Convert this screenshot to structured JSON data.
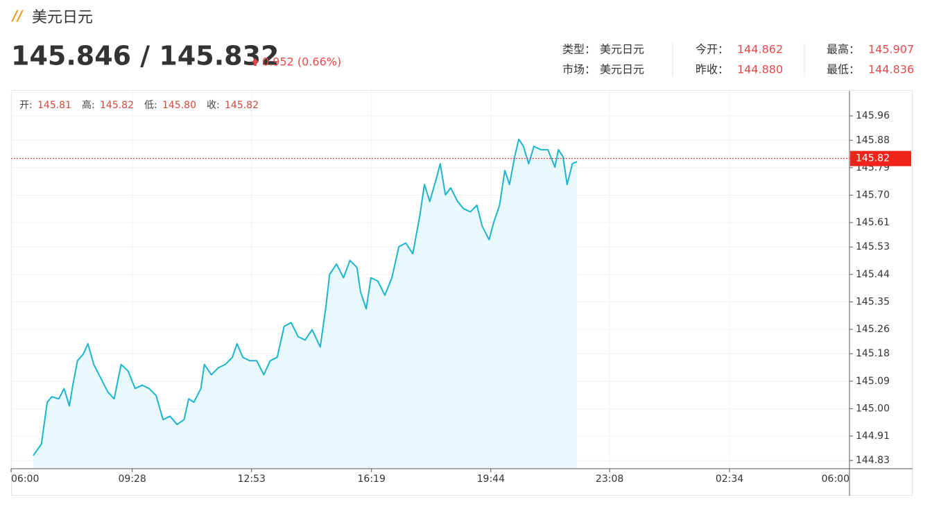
{
  "header": {
    "title": "美元日元",
    "price": "145.846 / 145.832",
    "change": "0.952 (0.66%)"
  },
  "info": [
    {
      "label": "类型：",
      "value": "美元日元"
    },
    {
      "label": "今开：",
      "value": "144.862"
    },
    {
      "label": "最高：",
      "value": "145.907"
    },
    {
      "label": "市场：",
      "value": "美元日元"
    },
    {
      "label": "昨收：",
      "value": "144.880"
    },
    {
      "label": "最低：",
      "value": "144.836"
    }
  ],
  "ohlc": [
    {
      "label": "开:",
      "value": "145.81"
    },
    {
      "label": "高:",
      "value": "145.82"
    },
    {
      "label": "低:",
      "value": "145.80"
    },
    {
      "label": "收:",
      "value": "145.82"
    }
  ],
  "chart_data": {
    "type": "area",
    "color": "#1ab4cf",
    "fill": "#e9f9fb",
    "last_price": 145.82,
    "last_price_color": "#f0241b",
    "grid": true,
    "xlim": [
      0,
      1440
    ],
    "xticks": [
      {
        "value": 0,
        "label": "06:00"
      },
      {
        "value": 208,
        "label": "09:28"
      },
      {
        "value": 413,
        "label": "12:53"
      },
      {
        "value": 619,
        "label": "16:19"
      },
      {
        "value": 824,
        "label": "19:44"
      },
      {
        "value": 1028,
        "label": "23:08"
      },
      {
        "value": 1234,
        "label": "02:34"
      },
      {
        "value": 1440,
        "label": "06:00"
      }
    ],
    "ylim": [
      144.803,
      146.042
    ],
    "yticks": [
      144.83,
      144.91,
      {
        "value": 145.0,
        "label": "145.00"
      },
      145.09,
      145.18,
      145.26,
      145.35,
      145.44,
      145.53,
      145.61,
      {
        "value": 145.7,
        "label": "145.70"
      },
      145.79,
      145.88,
      145.96
    ],
    "x": [
      38,
      52,
      62,
      70,
      82,
      91,
      100,
      106,
      114,
      124,
      132,
      142,
      154,
      166,
      177,
      189,
      201,
      213,
      225,
      237,
      249,
      261,
      273,
      285,
      297,
      305,
      314,
      326,
      332,
      344,
      356,
      368,
      380,
      388,
      398,
      410,
      422,
      434,
      445,
      457,
      469,
      481,
      493,
      505,
      517,
      531,
      541,
      547,
      559,
      571,
      582,
      594,
      600,
      610,
      618,
      630,
      642,
      654,
      666,
      678,
      690,
      702,
      710,
      719,
      731,
      737,
      746,
      755,
      767,
      777,
      789,
      800,
      809,
      821,
      829,
      839,
      848,
      856,
      865,
      872,
      880,
      889,
      898,
      910,
      922,
      934,
      940,
      948,
      955,
      964,
      972
    ],
    "values": [
      144.846,
      144.884,
      145.021,
      145.039,
      145.032,
      145.066,
      145.009,
      145.077,
      145.157,
      145.179,
      145.213,
      145.145,
      145.1,
      145.055,
      145.032,
      145.145,
      145.123,
      145.066,
      145.077,
      145.066,
      145.043,
      144.964,
      144.975,
      144.948,
      144.964,
      145.032,
      145.021,
      145.066,
      145.145,
      145.111,
      145.134,
      145.145,
      145.168,
      145.213,
      145.168,
      145.157,
      145.157,
      145.111,
      145.157,
      145.168,
      145.27,
      145.282,
      145.236,
      145.225,
      145.259,
      145.202,
      145.338,
      145.44,
      145.474,
      145.429,
      145.486,
      145.463,
      145.384,
      145.327,
      145.429,
      145.418,
      145.372,
      145.429,
      145.531,
      145.543,
      145.508,
      145.633,
      145.735,
      145.679,
      145.758,
      145.803,
      145.701,
      145.724,
      145.679,
      145.656,
      145.645,
      145.667,
      145.599,
      145.554,
      145.611,
      145.667,
      145.781,
      145.735,
      145.826,
      145.883,
      145.86,
      145.803,
      145.86,
      145.849,
      145.849,
      145.792,
      145.849,
      145.826,
      145.735,
      145.803,
      145.81
    ]
  }
}
